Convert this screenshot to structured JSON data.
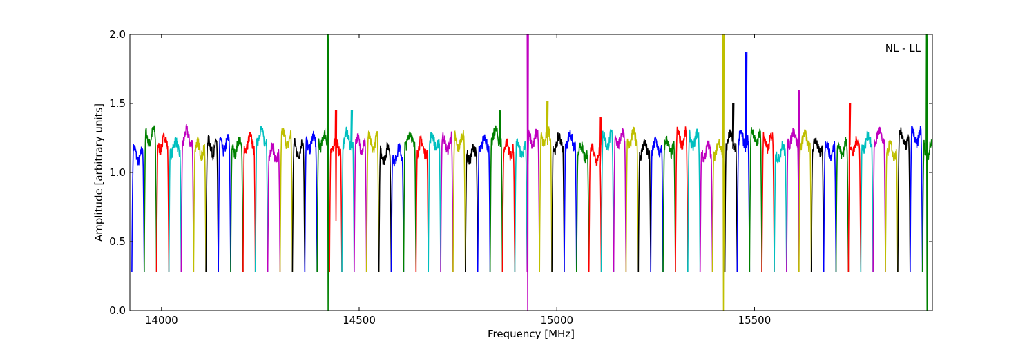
{
  "chart_data": {
    "type": "line",
    "title": "",
    "annotation": "NL - LL",
    "annotation_position": "top-right",
    "xlabel": "Frequency [MHz]",
    "ylabel": "Amplitude [arbitrary units]",
    "xlim": [
      13920,
      15950
    ],
    "ylim": [
      0.0,
      2.0
    ],
    "xticks": [
      14000,
      14500,
      15000,
      15500
    ],
    "xtick_labels": [
      "14000",
      "14500",
      "15000",
      "15500"
    ],
    "yticks": [
      0.0,
      0.5,
      1.0,
      1.5,
      2.0
    ],
    "ytick_labels": [
      "0.0",
      "0.5",
      "1.0",
      "1.5",
      "2.0"
    ],
    "grid": false,
    "legend": "none",
    "colors": [
      "#0000ff",
      "#008000",
      "#ff0000",
      "#00bfbf",
      "#bf00bf",
      "#bfbf00",
      "#000000"
    ],
    "subband_width_mhz": 31.25,
    "subband_start_mhz": 13925,
    "subband_count": 65,
    "typical_amplitude": 1.2,
    "typical_edge_minimum": 0.28,
    "spikes": [
      {
        "x": 14420,
        "y_max": 2.0,
        "y_min": 0.0,
        "color": "#008000"
      },
      {
        "x": 14440,
        "y_max": 1.45,
        "y_min": 0.65,
        "color": "#008000"
      },
      {
        "x": 14480,
        "y_max": 1.45,
        "y_min": 1.2,
        "color": "#00bfbf"
      },
      {
        "x": 14855,
        "y_max": 1.45,
        "y_min": 1.2,
        "color": "#008000"
      },
      {
        "x": 14925,
        "y_max": 2.0,
        "y_min": 0.0,
        "color": "#00bfbf"
      },
      {
        "x": 14975,
        "y_max": 1.52,
        "y_min": 1.2,
        "color": "#bfbf00"
      },
      {
        "x": 15110,
        "y_max": 1.4,
        "y_min": 1.2,
        "color": "#ff0000"
      },
      {
        "x": 15420,
        "y_max": 2.0,
        "y_min": 0.0,
        "color": "#bfbf00"
      },
      {
        "x": 15445,
        "y_max": 1.5,
        "y_min": 1.2,
        "color": "#000000"
      },
      {
        "x": 15478,
        "y_max": 1.87,
        "y_min": 1.2,
        "color": "#0000ff"
      },
      {
        "x": 15612,
        "y_max": 1.6,
        "y_min": 1.2,
        "color": "#bf00bf"
      },
      {
        "x": 15740,
        "y_max": 1.5,
        "y_min": 1.2,
        "color": "#008000"
      },
      {
        "x": 15935,
        "y_max": 2.0,
        "y_min": 0.0,
        "color": "#0000ff"
      }
    ]
  }
}
